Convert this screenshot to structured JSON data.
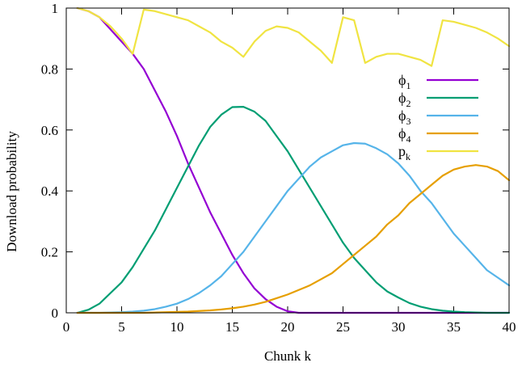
{
  "chart_data": {
    "type": "line",
    "title": "",
    "xlabel": "Chunk k",
    "ylabel": "Download probability",
    "xlim": [
      0,
      40
    ],
    "ylim": [
      0,
      1
    ],
    "xticks": [
      0,
      5,
      10,
      15,
      20,
      25,
      30,
      35,
      40
    ],
    "yticks": [
      0,
      0.2,
      0.4,
      0.6,
      0.8,
      1
    ],
    "ytick_labels": [
      "0",
      "0.2",
      "0.4",
      "0.6",
      "0.8",
      "1"
    ],
    "legend_position": "top-right",
    "grid": false,
    "series": [
      {
        "name": "ϕ1",
        "name_base": "ϕ",
        "name_sub": "1",
        "color": "#9400d3",
        "x": [
          1,
          2,
          3,
          4,
          5,
          6,
          7,
          8,
          9,
          10,
          11,
          12,
          13,
          14,
          15,
          16,
          17,
          18,
          19,
          20,
          21,
          22,
          23,
          24,
          25,
          26,
          27,
          28,
          29,
          30,
          31,
          32,
          33,
          34,
          35,
          36,
          37,
          38,
          39,
          40
        ],
        "y": [
          1.0,
          0.99,
          0.97,
          0.93,
          0.89,
          0.85,
          0.8,
          0.73,
          0.66,
          0.58,
          0.49,
          0.41,
          0.33,
          0.26,
          0.19,
          0.13,
          0.08,
          0.045,
          0.02,
          0.005,
          0,
          0,
          0,
          0,
          0,
          0,
          0,
          0,
          0,
          0,
          0,
          0,
          0,
          0,
          0,
          0,
          0,
          0,
          0,
          0
        ]
      },
      {
        "name": "ϕ2",
        "name_base": "ϕ",
        "name_sub": "2",
        "color": "#009e73",
        "x": [
          1,
          2,
          3,
          4,
          5,
          6,
          7,
          8,
          9,
          10,
          11,
          12,
          13,
          14,
          15,
          16,
          17,
          18,
          19,
          20,
          21,
          22,
          23,
          24,
          25,
          26,
          27,
          28,
          29,
          30,
          31,
          32,
          33,
          34,
          35,
          36,
          37,
          38,
          39,
          40
        ],
        "y": [
          0.0,
          0.01,
          0.03,
          0.065,
          0.1,
          0.15,
          0.21,
          0.27,
          0.34,
          0.41,
          0.48,
          0.55,
          0.61,
          0.65,
          0.675,
          0.676,
          0.66,
          0.63,
          0.58,
          0.53,
          0.47,
          0.41,
          0.35,
          0.29,
          0.23,
          0.18,
          0.14,
          0.1,
          0.07,
          0.05,
          0.032,
          0.02,
          0.012,
          0.007,
          0.004,
          0.002,
          0.001,
          0,
          0,
          0
        ]
      },
      {
        "name": "ϕ3",
        "name_base": "ϕ",
        "name_sub": "3",
        "color": "#56b4e9",
        "x": [
          1,
          2,
          3,
          4,
          5,
          6,
          7,
          8,
          9,
          10,
          11,
          12,
          13,
          14,
          15,
          16,
          17,
          18,
          19,
          20,
          21,
          22,
          23,
          24,
          25,
          26,
          27,
          28,
          29,
          30,
          31,
          32,
          33,
          34,
          35,
          36,
          37,
          38,
          39,
          40
        ],
        "y": [
          0,
          0,
          0,
          0.001,
          0.002,
          0.004,
          0.007,
          0.012,
          0.02,
          0.03,
          0.045,
          0.065,
          0.09,
          0.12,
          0.16,
          0.2,
          0.25,
          0.3,
          0.35,
          0.4,
          0.44,
          0.48,
          0.51,
          0.53,
          0.55,
          0.557,
          0.555,
          0.54,
          0.52,
          0.49,
          0.45,
          0.4,
          0.36,
          0.31,
          0.26,
          0.22,
          0.18,
          0.14,
          0.115,
          0.09
        ]
      },
      {
        "name": "ϕ4",
        "name_base": "ϕ",
        "name_sub": "4",
        "color": "#e69f00",
        "x": [
          1,
          2,
          3,
          4,
          5,
          6,
          7,
          8,
          9,
          10,
          11,
          12,
          13,
          14,
          15,
          16,
          17,
          18,
          19,
          20,
          21,
          22,
          23,
          24,
          25,
          26,
          27,
          28,
          29,
          30,
          31,
          32,
          33,
          34,
          35,
          36,
          37,
          38,
          39,
          40
        ],
        "y": [
          0,
          0,
          0,
          0,
          0,
          0,
          0,
          0.001,
          0.002,
          0.003,
          0.004,
          0.006,
          0.008,
          0.011,
          0.015,
          0.02,
          0.027,
          0.036,
          0.048,
          0.06,
          0.075,
          0.09,
          0.11,
          0.13,
          0.16,
          0.19,
          0.22,
          0.25,
          0.29,
          0.32,
          0.36,
          0.39,
          0.42,
          0.45,
          0.47,
          0.48,
          0.485,
          0.48,
          0.465,
          0.435
        ]
      },
      {
        "name": "pk",
        "name_base": "p",
        "name_sub": "k",
        "color": "#f0e442",
        "x": [
          1,
          2,
          3,
          4,
          5,
          6,
          7,
          8,
          9,
          10,
          11,
          12,
          13,
          14,
          15,
          16,
          17,
          18,
          19,
          20,
          21,
          22,
          23,
          24,
          25,
          26,
          27,
          28,
          29,
          30,
          31,
          32,
          33,
          34,
          35,
          36,
          37,
          38,
          39,
          40
        ],
        "y": [
          1.0,
          0.99,
          0.97,
          0.94,
          0.9,
          0.85,
          0.995,
          0.99,
          0.98,
          0.97,
          0.96,
          0.94,
          0.92,
          0.89,
          0.87,
          0.84,
          0.89,
          0.925,
          0.94,
          0.935,
          0.92,
          0.89,
          0.86,
          0.82,
          0.97,
          0.96,
          0.82,
          0.84,
          0.85,
          0.85,
          0.84,
          0.83,
          0.81,
          0.96,
          0.955,
          0.945,
          0.935,
          0.92,
          0.9,
          0.875
        ]
      }
    ]
  }
}
